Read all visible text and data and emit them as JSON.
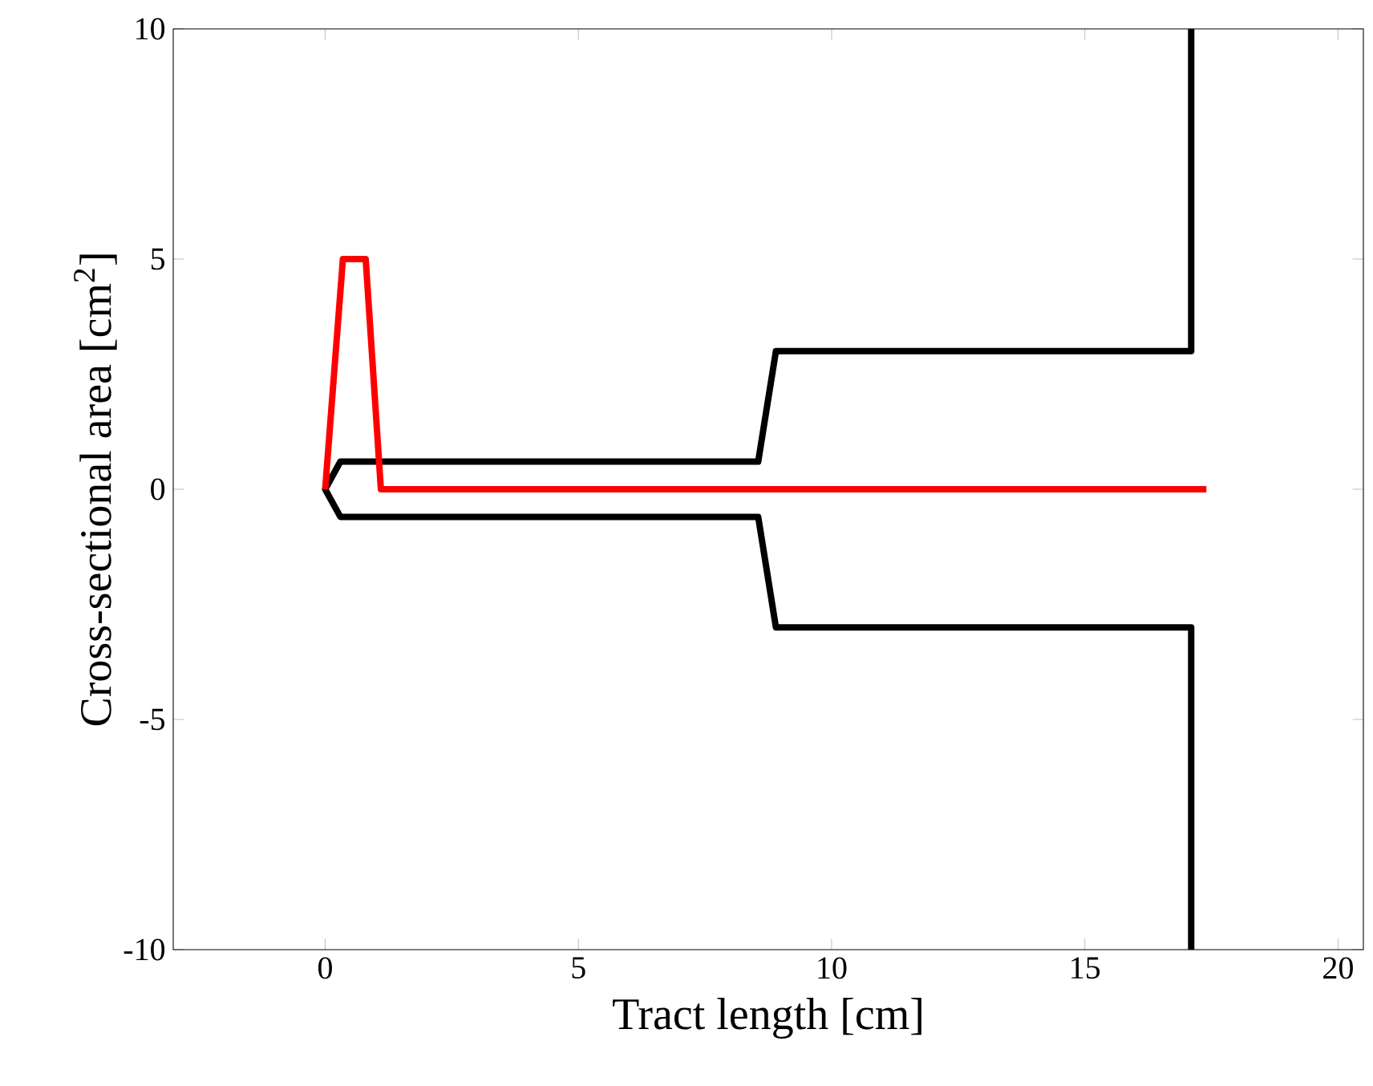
{
  "chart_data": {
    "type": "line",
    "xlabel": "Tract length [cm]",
    "ylabel": "Cross-sectional area [cm$^{2}$]",
    "xlim": [
      -3,
      20.5
    ],
    "ylim": [
      -10,
      10
    ],
    "xticks": [
      0,
      5,
      10,
      15,
      20
    ],
    "yticks": [
      -10,
      -5,
      0,
      5,
      10
    ],
    "grid": false,
    "marker": "none",
    "line_style": "solid",
    "series": [
      {
        "color": "#000000",
        "x": [
          17.1,
          17.1,
          8.9,
          8.55,
          0.3,
          0,
          0.3,
          8.55,
          8.9,
          17.1,
          17.1
        ],
        "values": [
          10,
          3,
          3,
          0.6,
          0.6,
          0,
          -0.6,
          -0.6,
          -3,
          -3,
          -10
        ]
      },
      {
        "color": "#ff0000",
        "x": [
          0,
          0.35,
          0.8,
          1.1,
          17.4
        ],
        "values": [
          0,
          5,
          5,
          0,
          0
        ]
      }
    ]
  }
}
